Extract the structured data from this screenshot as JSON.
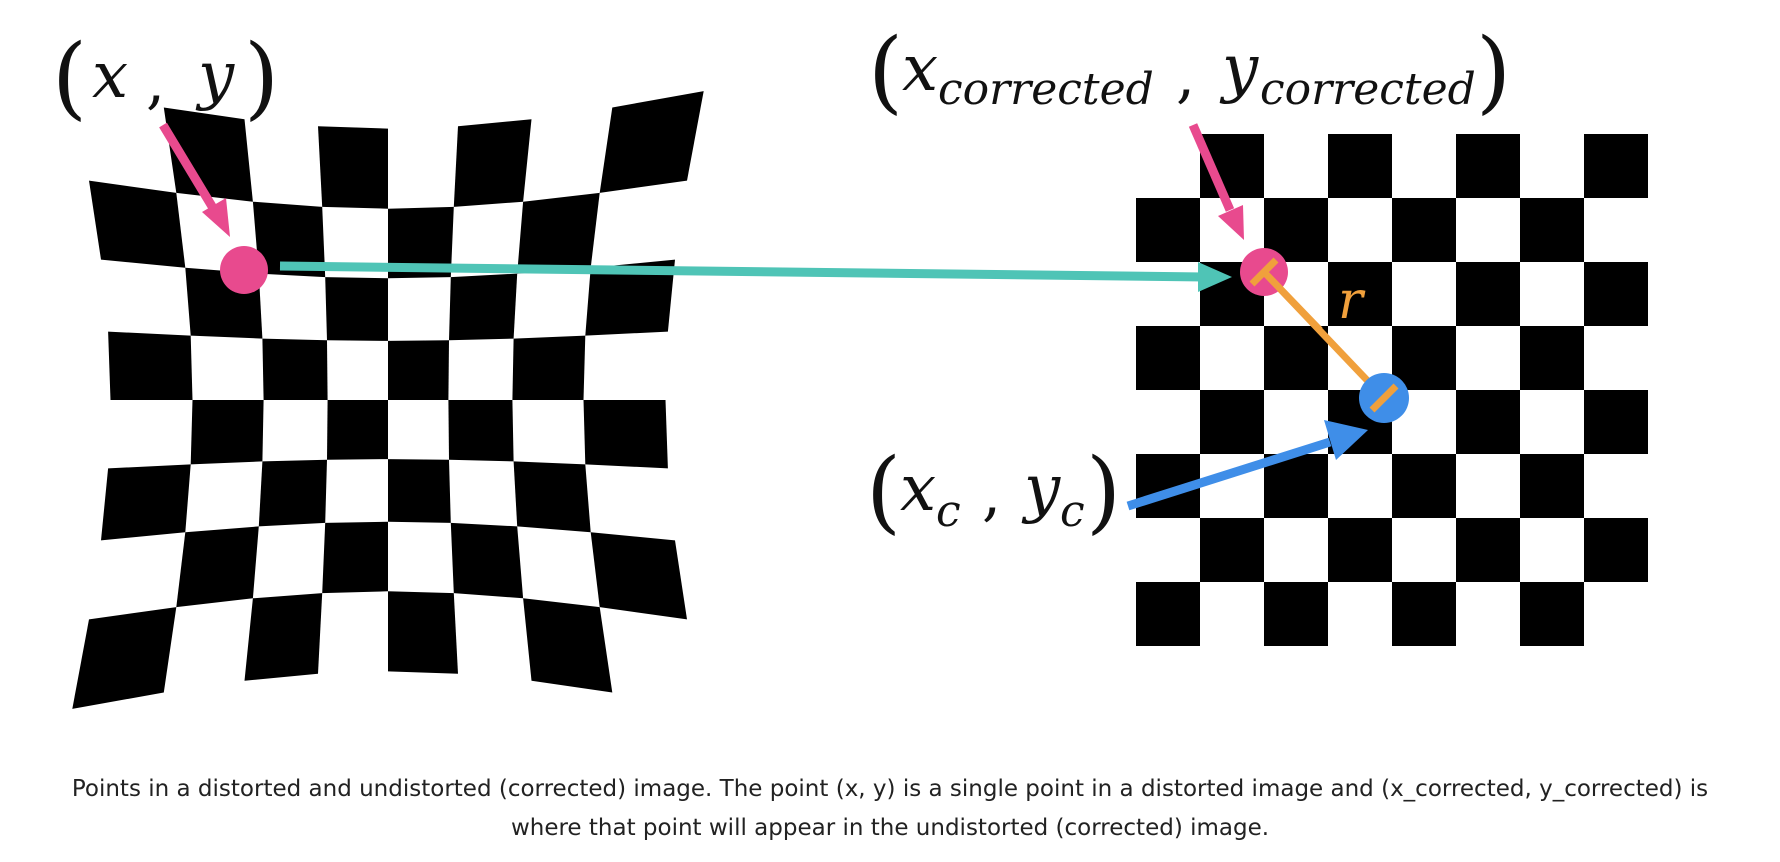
{
  "labels": {
    "distorted_point": {
      "open": "(",
      "x": "x",
      "sep": ",",
      "y": "y",
      "close": ")"
    },
    "corrected_point": {
      "open": "(",
      "x": "x",
      "x_sub": "corrected",
      "sep": ",",
      "y": "y",
      "y_sub": "corrected",
      "close": ")"
    },
    "center_point": {
      "open": "(",
      "x": "x",
      "x_sub": "c",
      "sep": ",",
      "y": "y",
      "y_sub": "c",
      "close": ")"
    },
    "radius": "r"
  },
  "caption_lines": [
    "Points in a distorted and undistorted (corrected) image. The point (x, y) is a single point in a distorted image and (x_corrected, y_corrected) is",
    "where that point will appear in the undistorted (corrected) image."
  ],
  "colors": {
    "point_pink": "#e84a8e",
    "arrow_teal": "#4fc4b6",
    "center_blue": "#3f8ee8",
    "radius_orange": "#f0a03c"
  }
}
